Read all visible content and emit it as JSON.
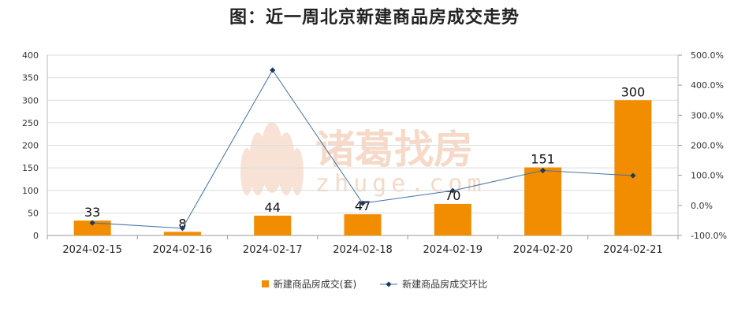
{
  "chart_data": {
    "type": "bar",
    "title": "图：近一周北京新建商品房成交走势",
    "categories": [
      "2024-02-15",
      "2024-02-16",
      "2024-02-17",
      "2024-02-18",
      "2024-02-19",
      "2024-02-20",
      "2024-02-21"
    ],
    "series": [
      {
        "name": "新建商品房成交(套)",
        "type": "bar",
        "axis": "left",
        "values": [
          33,
          8,
          44,
          47,
          70,
          151,
          300
        ],
        "color": "#f28c00"
      },
      {
        "name": "新建商品房成交环比",
        "type": "line",
        "axis": "right",
        "values": [
          -58,
          -76,
          450,
          7,
          49,
          116,
          99
        ],
        "color": "#4472a8"
      }
    ],
    "y_left": {
      "ylim": [
        0,
        400
      ],
      "ticks": [
        "0",
        "50",
        "100",
        "150",
        "200",
        "250",
        "300",
        "350",
        "400"
      ]
    },
    "y_right": {
      "ylim": [
        -100,
        500
      ],
      "ticks": [
        "-100.0%",
        "0.0%",
        "100.0%",
        "200.0%",
        "300.0%",
        "400.0%",
        "500.0%"
      ]
    },
    "grid": true,
    "legend_position": "bottom"
  },
  "watermark": {
    "brand": "诸葛找房",
    "domain": "zhuge.com",
    "color": "#f6d9c8"
  }
}
